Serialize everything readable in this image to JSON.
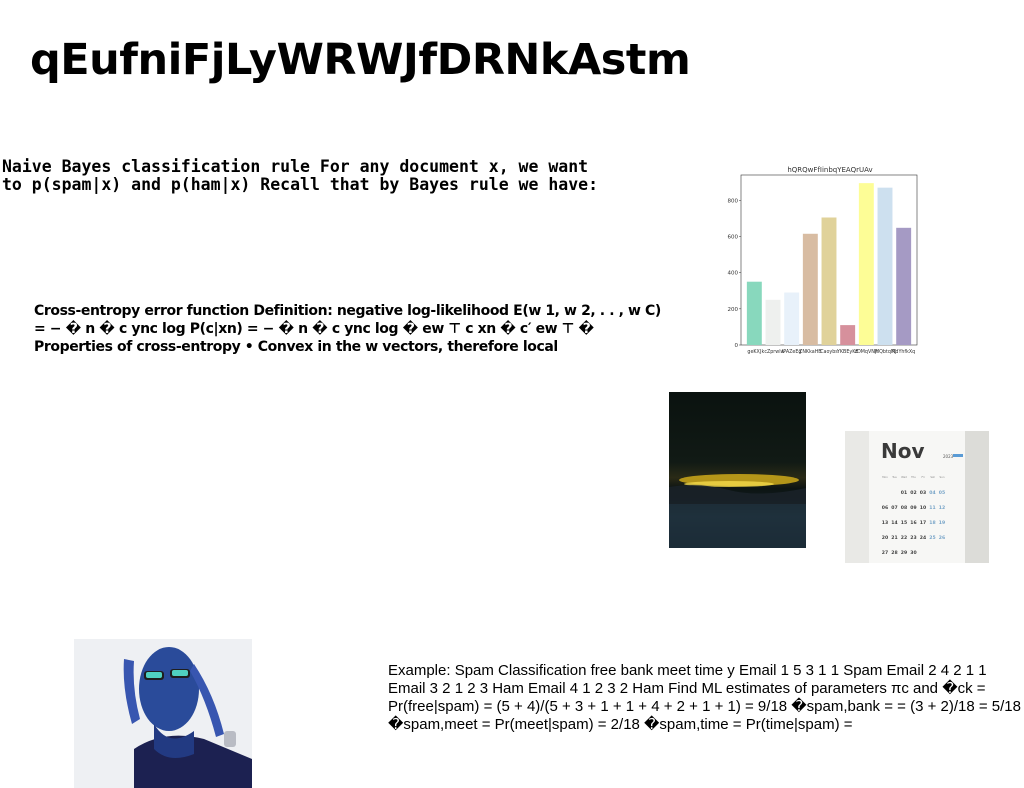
{
  "page": {
    "title": "qEufniFjLyWRWJfDRNkAstm",
    "para1": "Naive Bayes classification rule For any document x, we want to p(spam|x) and p(ham|x) Recall that by Bayes rule we have:",
    "para2": "Cross-entropy error function Definition: negative log-likelihood E(w 1, w 2, . . , w C) = − � n � c ync log P(c|xn) = − � n � c ync log � ew ⊤ c xn � c′ ew ⊤ � Properties of cross-entropy • Convex in the w vectors, therefore local",
    "para3": "Example: Spam Classification free bank meet time y Email 1 5 3 1 1 Spam Email 2 4 2 1 1 Email 3 2 1 2 3 Ham Email 4 1 2 3 2 Ham Find ML estimates of parameters πc and �ck = Pr(free|spam) = (5 + 4)/(5 + 3 + 1 + 1 + 4 + 2 + 1 + 1) = 9/18 �spam,bank = = (3 + 2)/18 = 5/18 �spam,meet = Pr(meet|spam) = 2/18 �spam,time = Pr(time|spam) ="
  },
  "calendar": {
    "month": "Nov",
    "year": "2023",
    "weekdays": [
      "Mon",
      "Tue",
      "Wed",
      "Thu",
      "Fri",
      "Sat",
      "Sun"
    ],
    "rows": [
      [
        "",
        "",
        "01",
        "02",
        "03",
        "04",
        "05"
      ],
      [
        "06",
        "07",
        "08",
        "09",
        "10",
        "11",
        "12"
      ],
      [
        "13",
        "14",
        "15",
        "16",
        "17",
        "18",
        "19"
      ],
      [
        "20",
        "21",
        "22",
        "23",
        "24",
        "25",
        "26"
      ],
      [
        "27",
        "28",
        "29",
        "30",
        "",
        "",
        ""
      ]
    ]
  },
  "chart_data": {
    "type": "bar",
    "title": "hQRQwFfIinbqYEAQrUAv",
    "categories": [
      "geKXJ",
      "kcZprwlw",
      "IPAZeEg",
      "ZNKkaHB",
      "Caoybs",
      "YKBEyKE",
      "zDMqVNjt",
      "IMQbtqMJ",
      "RdYhfkXq"
    ],
    "values": [
      350,
      250,
      290,
      615,
      705,
      110,
      895,
      870,
      648
    ],
    "colors": [
      "#88d8bd",
      "#eef0ee",
      "#e8f1fa",
      "#d8bca2",
      "#e0d29a",
      "#d6909c",
      "#fdfd96",
      "#cde0ef",
      "#a59ac4"
    ],
    "ylim": [
      0,
      940
    ],
    "yticks": [
      0,
      200,
      400,
      600,
      800
    ],
    "grid": false
  }
}
